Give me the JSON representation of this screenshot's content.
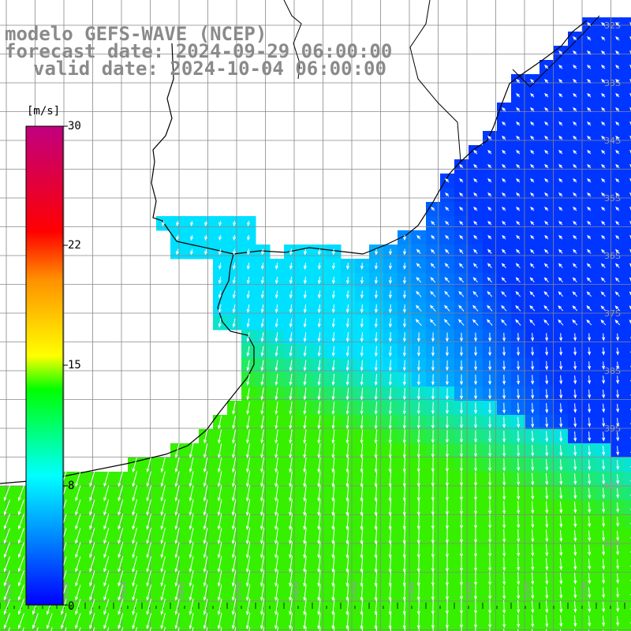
{
  "title": {
    "line1": "modelo GEFS-WAVE (NCEP)",
    "line2": "forecast date: 2024-09-29 06:00:00",
    "line3": "valid date: 2024-10-04 06:00:00"
  },
  "colorbar": {
    "unit": "[m/s]",
    "ticks": [
      {
        "label": "30",
        "value": 30
      },
      {
        "label": "22",
        "value": 22
      },
      {
        "label": "15",
        "value": 15
      },
      {
        "label": "8",
        "value": 8
      },
      {
        "label": "0",
        "value": 0
      }
    ],
    "colors": [
      "#0000ff",
      "#0090ff",
      "#00ffff",
      "#00ff00",
      "#ffff00",
      "#ff9000",
      "#ff0000",
      "#c00080"
    ]
  },
  "map": {
    "lat_labels": [
      "32S",
      "33S",
      "34S",
      "35S",
      "36S",
      "37S",
      "38S",
      "39S",
      "40S",
      "41S"
    ],
    "lon_labels": [
      "61W",
      "60W",
      "59W",
      "58W",
      "57W",
      "56W",
      "55W",
      "54W",
      "53W",
      "52W",
      "51W"
    ],
    "ocean_low_color": "#0036ff",
    "ocean_mid_color": "#00e0ff",
    "ocean_high_color": "#36f000",
    "arrow_color": "#ffffff",
    "coast_color": "#000000"
  }
}
